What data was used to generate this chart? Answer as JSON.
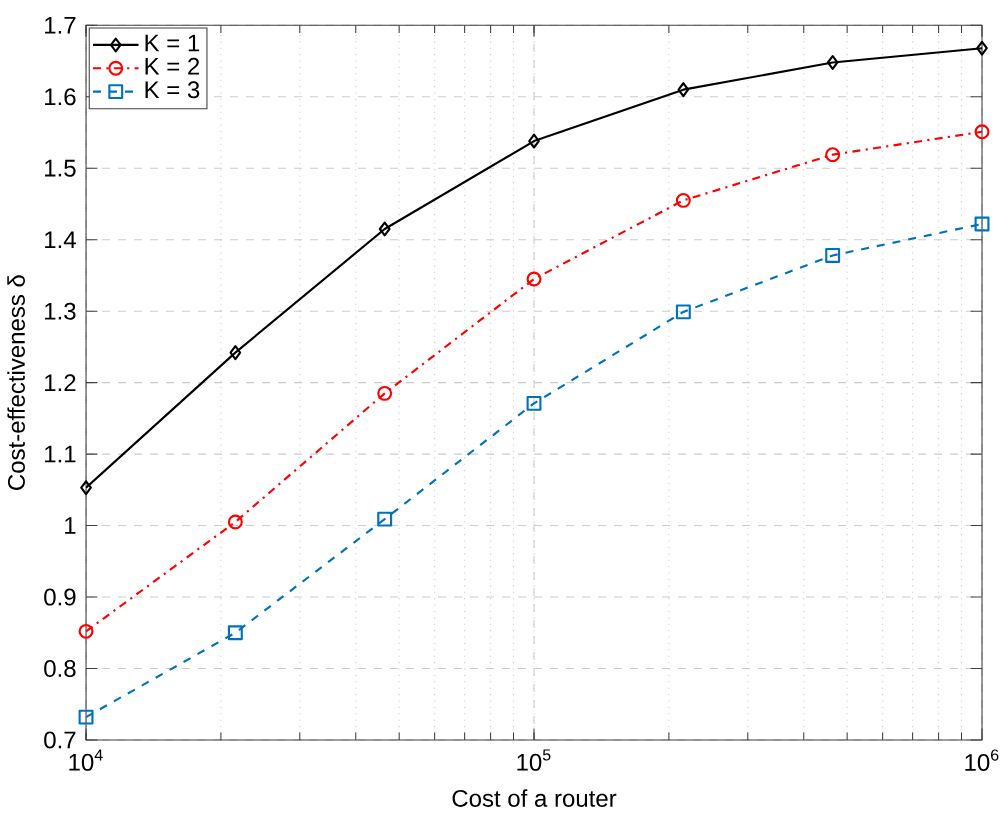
{
  "chart_data": {
    "type": "line",
    "xlabel": "Cost of a router",
    "ylabel": "Cost-effectiveness δ",
    "x": [
      10000,
      21544,
      46416,
      100000,
      215443,
      464159,
      1000000
    ],
    "log": "x",
    "grid": true,
    "legend": "top left",
    "xlim": [
      10000,
      1000000
    ],
    "ylim": [
      0.7,
      1.7
    ],
    "xticks": [
      {
        "value": 10000,
        "label": "10$^{4}$"
      },
      {
        "value": 100000,
        "label": "10$^{5}$"
      },
      {
        "value": 1000000,
        "label": "10$^{6}$"
      }
    ],
    "yticks": [
      0.7,
      0.8,
      0.9,
      1,
      1.1,
      1.2,
      1.3,
      1.4,
      1.5,
      1.6,
      1.7
    ],
    "series": [
      {
        "name": "K = 1",
        "color": "#000000",
        "marker": "diamond",
        "line_style": "solid",
        "values": [
          1.053,
          1.242,
          1.415,
          1.538,
          1.61,
          1.648,
          1.668
        ]
      },
      {
        "name": "K = 2",
        "color": "#ff0000",
        "marker": "circle",
        "line_style": "dashdot",
        "values": [
          0.852,
          1.005,
          1.185,
          1.345,
          1.455,
          1.519,
          1.551
        ]
      },
      {
        "name": "K = 3",
        "color": "#0072bd",
        "marker": "square",
        "line_style": "dashed",
        "values": [
          0.732,
          0.85,
          1.009,
          1.171,
          1.299,
          1.378,
          1.422
        ]
      }
    ]
  }
}
